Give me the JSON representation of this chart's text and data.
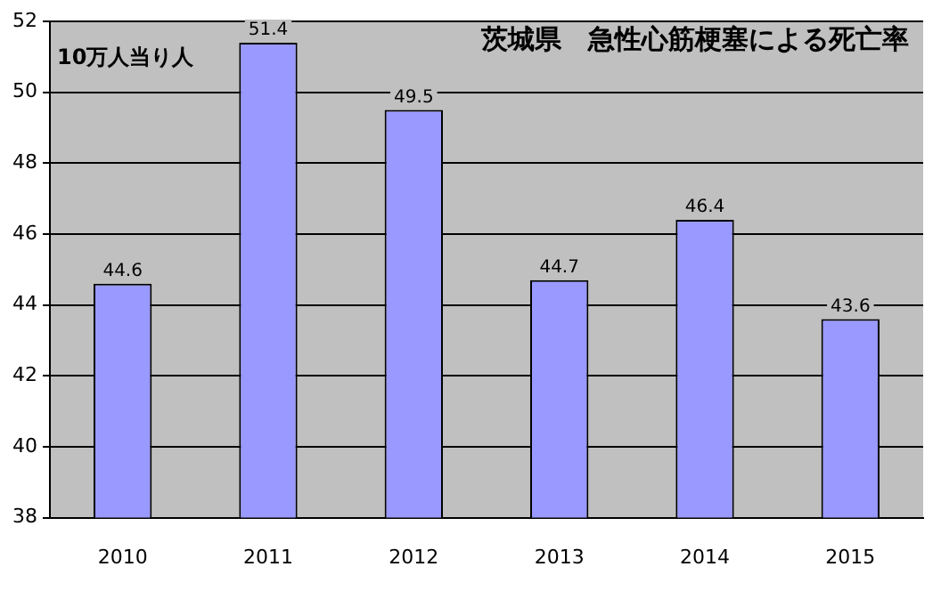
{
  "chart_data": {
    "type": "bar",
    "title": "茨城県　急性心筋梗塞による死亡率",
    "ylabel": "10万人当り人",
    "categories": [
      "2010",
      "2011",
      "2012",
      "2013",
      "2014",
      "2015"
    ],
    "values": [
      44.6,
      51.4,
      49.5,
      44.7,
      46.4,
      43.6
    ],
    "color": "#9999ff",
    "ylim": [
      38,
      52
    ],
    "yticks": [
      38,
      40,
      42,
      44,
      46,
      48,
      50,
      52
    ],
    "grid": "y",
    "data_labels": true,
    "legend": false
  }
}
